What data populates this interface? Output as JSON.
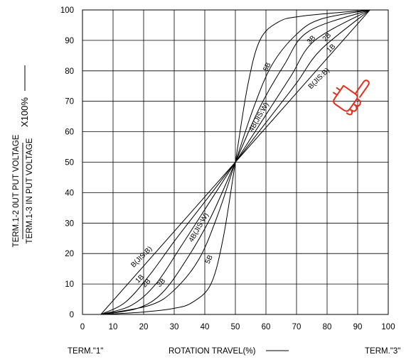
{
  "chart_data": {
    "type": "line",
    "xlabel": "ROTATION TRAVEL(%)",
    "ylabel_numerator": "TERM.1-2 0UT PUT VOLTAGE",
    "ylabel_denominator": "TERM.1-3 IN PUT VOLTAGE",
    "ylabel_factor": "X100%",
    "terminal_left": "TERM.\"1\"",
    "terminal_right": "TERM.\"3\"",
    "xlim": [
      0,
      100
    ],
    "ylim": [
      0,
      100
    ],
    "xticks": [
      "0",
      "10",
      "20",
      "30",
      "40",
      "50",
      "60",
      "70",
      "80",
      "90",
      "100"
    ],
    "yticks": [
      "0",
      "10",
      "20",
      "30",
      "40",
      "50",
      "60",
      "70",
      "80",
      "90",
      "100"
    ],
    "grid": true,
    "series": [
      {
        "name": "5B",
        "points": [
          [
            6,
            0
          ],
          [
            20,
            0.8
          ],
          [
            30,
            2
          ],
          [
            36,
            4
          ],
          [
            42,
            10
          ],
          [
            46,
            25
          ],
          [
            50,
            50
          ],
          [
            54,
            75
          ],
          [
            58,
            90
          ],
          [
            64,
            96
          ],
          [
            72,
            98
          ],
          [
            94,
            100
          ]
        ]
      },
      {
        "name": "4B(JIS:W)",
        "points": [
          [
            6,
            0
          ],
          [
            22,
            3
          ],
          [
            30,
            8
          ],
          [
            38,
            18
          ],
          [
            44,
            32
          ],
          [
            50,
            50
          ],
          [
            56,
            68
          ],
          [
            62,
            82
          ],
          [
            70,
            92
          ],
          [
            78,
            97
          ],
          [
            94,
            100
          ]
        ]
      },
      {
        "name": "3B",
        "points": [
          [
            6,
            0
          ],
          [
            18,
            2
          ],
          [
            26,
            7
          ],
          [
            34,
            18
          ],
          [
            42,
            32
          ],
          [
            50,
            50
          ],
          [
            58,
            68
          ],
          [
            66,
            82
          ],
          [
            74,
            93
          ],
          [
            94,
            100
          ]
        ]
      },
      {
        "name": "2B",
        "points": [
          [
            6,
            0
          ],
          [
            16,
            3
          ],
          [
            24,
            10
          ],
          [
            32,
            22
          ],
          [
            41,
            36
          ],
          [
            50,
            50
          ],
          [
            59,
            64
          ],
          [
            68,
            78
          ],
          [
            76,
            90
          ],
          [
            94,
            100
          ]
        ]
      },
      {
        "name": "1B",
        "points": [
          [
            6,
            0
          ],
          [
            14,
            4
          ],
          [
            22,
            13
          ],
          [
            30,
            24
          ],
          [
            40,
            37
          ],
          [
            50,
            50
          ],
          [
            60,
            63
          ],
          [
            70,
            76
          ],
          [
            78,
            87
          ],
          [
            94,
            100
          ]
        ]
      },
      {
        "name": "B(JIS:B)",
        "points": [
          [
            6,
            0
          ],
          [
            50,
            50
          ],
          [
            94,
            100
          ]
        ]
      }
    ],
    "curve_labels": [
      {
        "text": "5B",
        "x": 61,
        "y": 81,
        "angle": -65
      },
      {
        "text": "4B(JIS:W)",
        "x": 58.3,
        "y": 64.5,
        "angle": -60
      },
      {
        "text": "3B",
        "x": 75.3,
        "y": 89.7,
        "angle": -45
      },
      {
        "text": "2B",
        "x": 80.4,
        "y": 90.6,
        "angle": -45
      },
      {
        "text": "1B",
        "x": 81.8,
        "y": 86.9,
        "angle": -45
      },
      {
        "text": "B(JIS:B)",
        "x": 77.8,
        "y": 77,
        "angle": -45
      },
      {
        "text": "B(JIS:B)",
        "x": 19.8,
        "y": 18.4,
        "angle": -45
      },
      {
        "text": "1B",
        "x": 19.2,
        "y": 11.2,
        "angle": -45
      },
      {
        "text": "2B",
        "x": 21.4,
        "y": 9.8,
        "angle": -45
      },
      {
        "text": "3B",
        "x": 26.2,
        "y": 9.9,
        "angle": -45
      },
      {
        "text": "4B(JIS:W)",
        "x": 38.6,
        "y": 28.2,
        "angle": -60
      },
      {
        "text": "5B",
        "x": 42,
        "y": 17.8,
        "angle": -65
      }
    ],
    "colors": {
      "line": "#000000",
      "grid": "#000000",
      "pointer": "#e0301e"
    },
    "pointer_icon": "pointing-hand-icon"
  }
}
